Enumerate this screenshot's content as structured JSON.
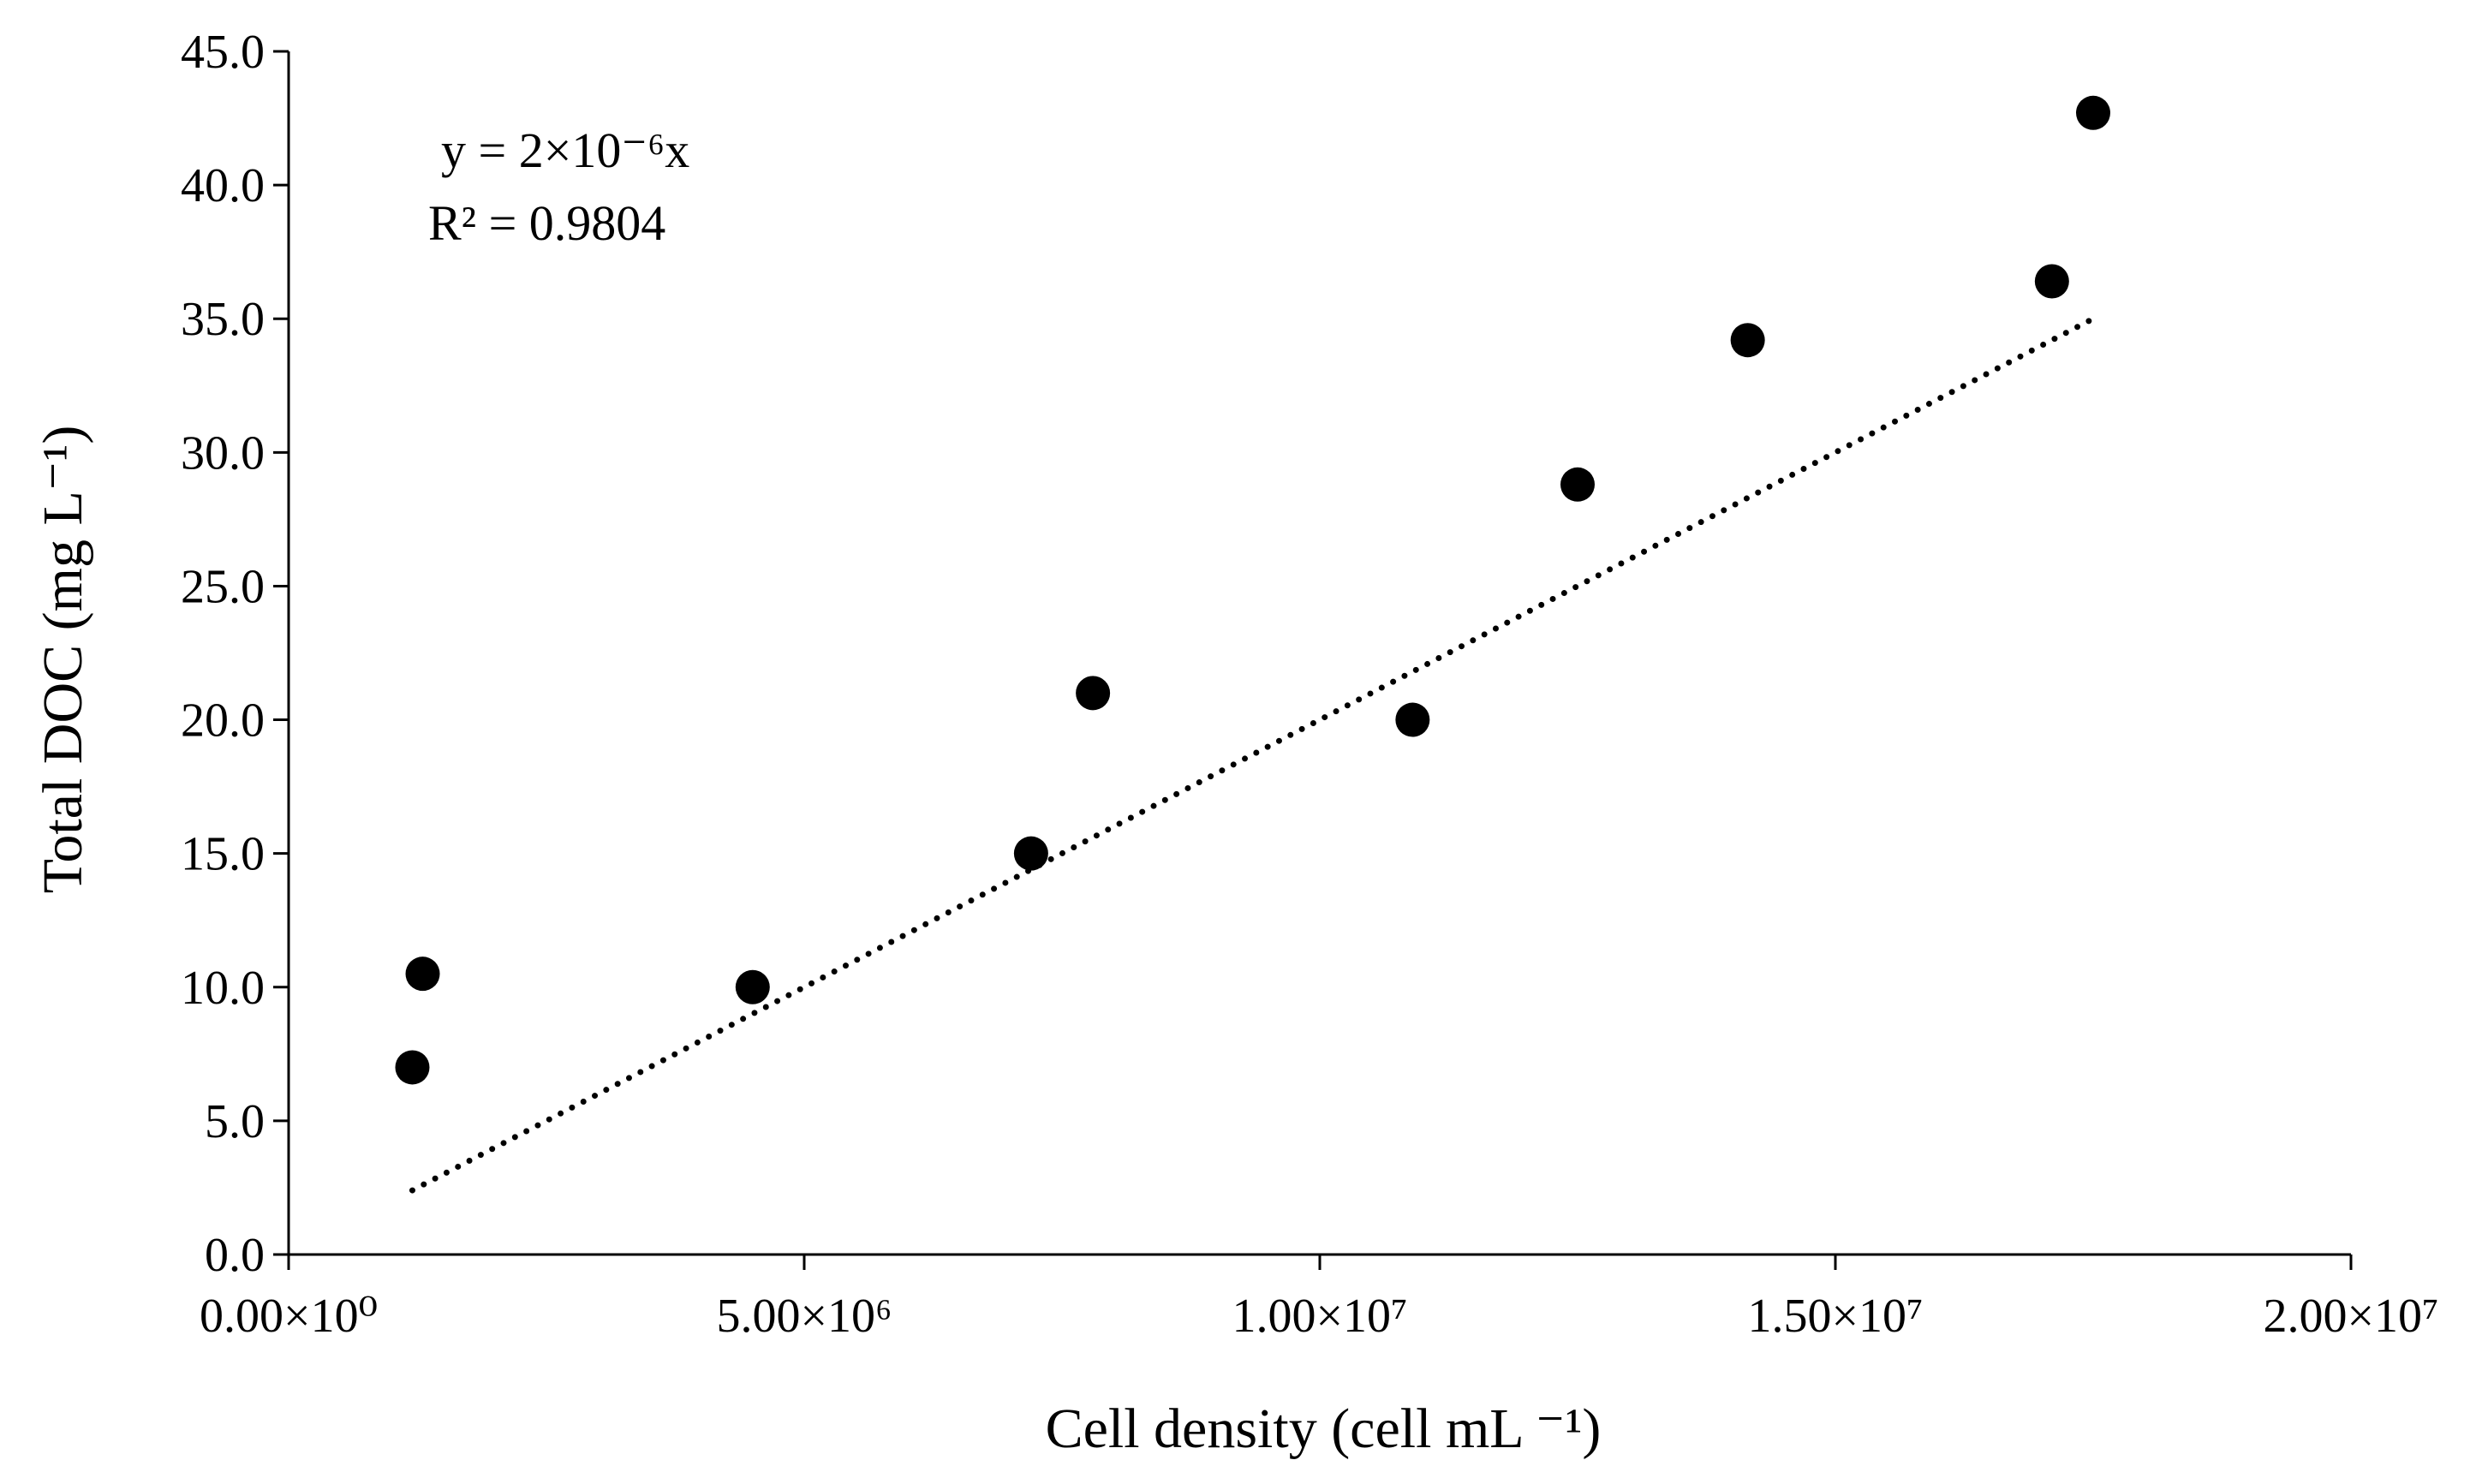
{
  "chart_data": {
    "type": "scatter",
    "title": "",
    "xlabel": "Cell density (cell mL ⁻¹)",
    "ylabel": "Total DOC (mg L⁻¹)",
    "xlim": [
      0,
      20000000
    ],
    "ylim": [
      0,
      45
    ],
    "x_ticks": [
      0,
      5000000,
      10000000,
      15000000,
      20000000
    ],
    "x_tick_labels": [
      "0.00×10⁰",
      "5.00×10⁶",
      "1.00×10⁷",
      "1.50×10⁷",
      "2.00×10⁷"
    ],
    "y_ticks": [
      0,
      5,
      10,
      15,
      20,
      25,
      30,
      35,
      40,
      45
    ],
    "y_tick_labels": [
      "0.0",
      "5.0",
      "10.0",
      "15.0",
      "20.0",
      "25.0",
      "30.0",
      "35.0",
      "40.0",
      "45.0"
    ],
    "grid": false,
    "legend": "none",
    "series": [
      {
        "name": "Total DOC",
        "marker": "circle",
        "color": "#000000",
        "x": [
          1200000,
          1300000,
          4500000,
          7200000,
          7800000,
          10900000,
          12500000,
          14150000,
          17100000,
          17500000
        ],
        "y": [
          7.0,
          10.5,
          10.0,
          15.0,
          21.0,
          20.0,
          28.8,
          34.2,
          36.4,
          42.7
        ]
      }
    ],
    "trendline": {
      "type": "linear",
      "style": "dotted",
      "slope": 2e-06,
      "x_range": [
        1200000,
        17500000
      ],
      "equation": "y = 2×10⁻⁶x",
      "r_squared": "R² = 0.9804"
    }
  }
}
